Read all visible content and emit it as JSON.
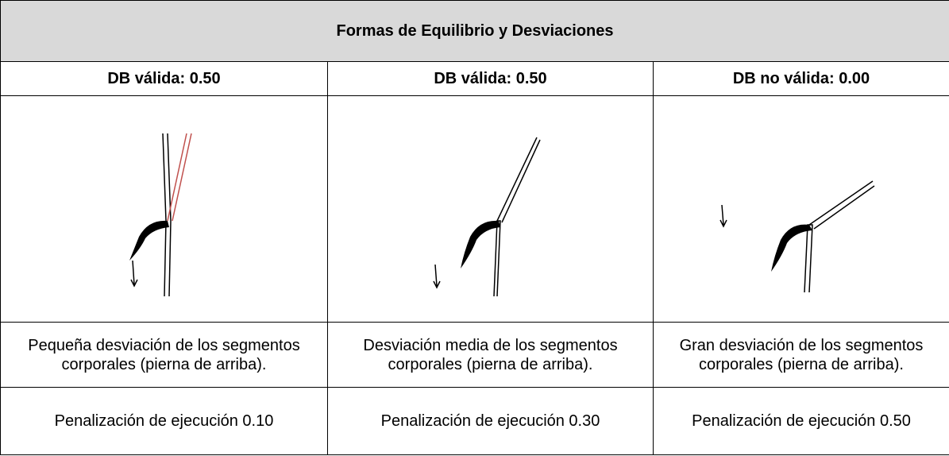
{
  "table": {
    "title": "Formas de Equilibrio y Desviaciones",
    "headers": [
      "DB válida: 0.50",
      "DB válida: 0.50",
      "DB no válida: 0.00"
    ],
    "descriptions": [
      "Pequeña desviación de los segmentos corporales (pierna de arriba).",
      "Desviación media de los segmentos corporales (pierna de arriba).",
      "Gran desviación de los segmentos corporales (pierna de arriba)."
    ],
    "penalties": [
      "Penalización de ejecución 0.10",
      "Penalización de ejecución 0.30",
      "Penalización de ejecución 0.50"
    ]
  }
}
